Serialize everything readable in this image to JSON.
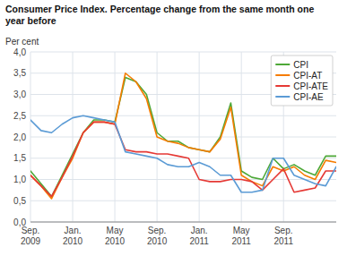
{
  "chart_data": {
    "type": "line",
    "title": "Consumer Price Index. Percentage change from the same month one\nyear before",
    "y_label": "Per cent",
    "categories": [
      "Sep.\n2009",
      null,
      null,
      null,
      "Jan.\n2010",
      null,
      null,
      null,
      "May\n2010",
      null,
      null,
      null,
      "Sep.\n2010",
      null,
      null,
      null,
      "Jan.\n2011",
      null,
      null,
      null,
      "May\n2011",
      null,
      null,
      null,
      "Sep.\n2011",
      null,
      null,
      null,
      null,
      null
    ],
    "series": [
      {
        "name": "CPI",
        "color": "#4da837",
        "values": [
          1.2,
          0.9,
          0.6,
          1.1,
          1.6,
          2.1,
          2.4,
          2.4,
          2.35,
          3.4,
          3.3,
          3.0,
          2.1,
          1.9,
          1.9,
          1.75,
          1.7,
          1.65,
          2.0,
          2.8,
          1.2,
          1.05,
          1.0,
          1.5,
          1.25,
          1.35,
          1.2,
          1.1,
          1.55,
          1.55
        ]
      },
      {
        "name": "CPI-AT",
        "color": "#f57c00",
        "values": [
          1.1,
          0.85,
          0.55,
          1.05,
          1.5,
          2.1,
          2.35,
          2.35,
          2.3,
          3.5,
          3.3,
          2.9,
          2.0,
          1.9,
          1.85,
          1.75,
          1.7,
          1.65,
          1.95,
          2.7,
          1.1,
          0.95,
          0.85,
          1.3,
          1.2,
          1.3,
          1.1,
          1.0,
          1.45,
          1.4
        ]
      },
      {
        "name": "CPI-ATE",
        "color": "#e53935",
        "values": [
          1.1,
          0.85,
          0.6,
          1.05,
          1.55,
          2.1,
          2.35,
          2.35,
          2.3,
          1.7,
          1.65,
          1.65,
          1.6,
          1.6,
          1.55,
          1.5,
          1.0,
          0.95,
          0.95,
          1.0,
          1.0,
          0.95,
          0.75,
          1.0,
          1.25,
          0.7,
          0.75,
          0.8,
          1.2,
          1.2
        ]
      },
      {
        "name": "CPI-AE",
        "color": "#5b9bd5",
        "values": [
          2.4,
          2.15,
          2.1,
          2.3,
          2.45,
          2.5,
          2.45,
          2.4,
          2.35,
          1.65,
          1.6,
          1.55,
          1.5,
          1.35,
          1.3,
          1.3,
          1.4,
          1.3,
          1.1,
          1.1,
          0.7,
          0.7,
          0.75,
          1.5,
          1.5,
          1.1,
          1.0,
          0.9,
          0.85,
          1.3
        ]
      }
    ],
    "ylim": [
      0.0,
      4.0
    ],
    "yticks": [
      {
        "value": 0.0,
        "label": "0,0"
      },
      {
        "value": 0.5,
        "label": "0,5"
      },
      {
        "value": 1.0,
        "label": "1,0"
      },
      {
        "value": 1.5,
        "label": "1,5"
      },
      {
        "value": 2.0,
        "label": "2,0"
      },
      {
        "value": 2.5,
        "label": "2,5"
      },
      {
        "value": 3.0,
        "label": "3,0"
      },
      {
        "value": 3.5,
        "label": "3,5"
      },
      {
        "value": 4.0,
        "label": "4,0"
      }
    ],
    "grid": true,
    "legend": "upper right"
  }
}
